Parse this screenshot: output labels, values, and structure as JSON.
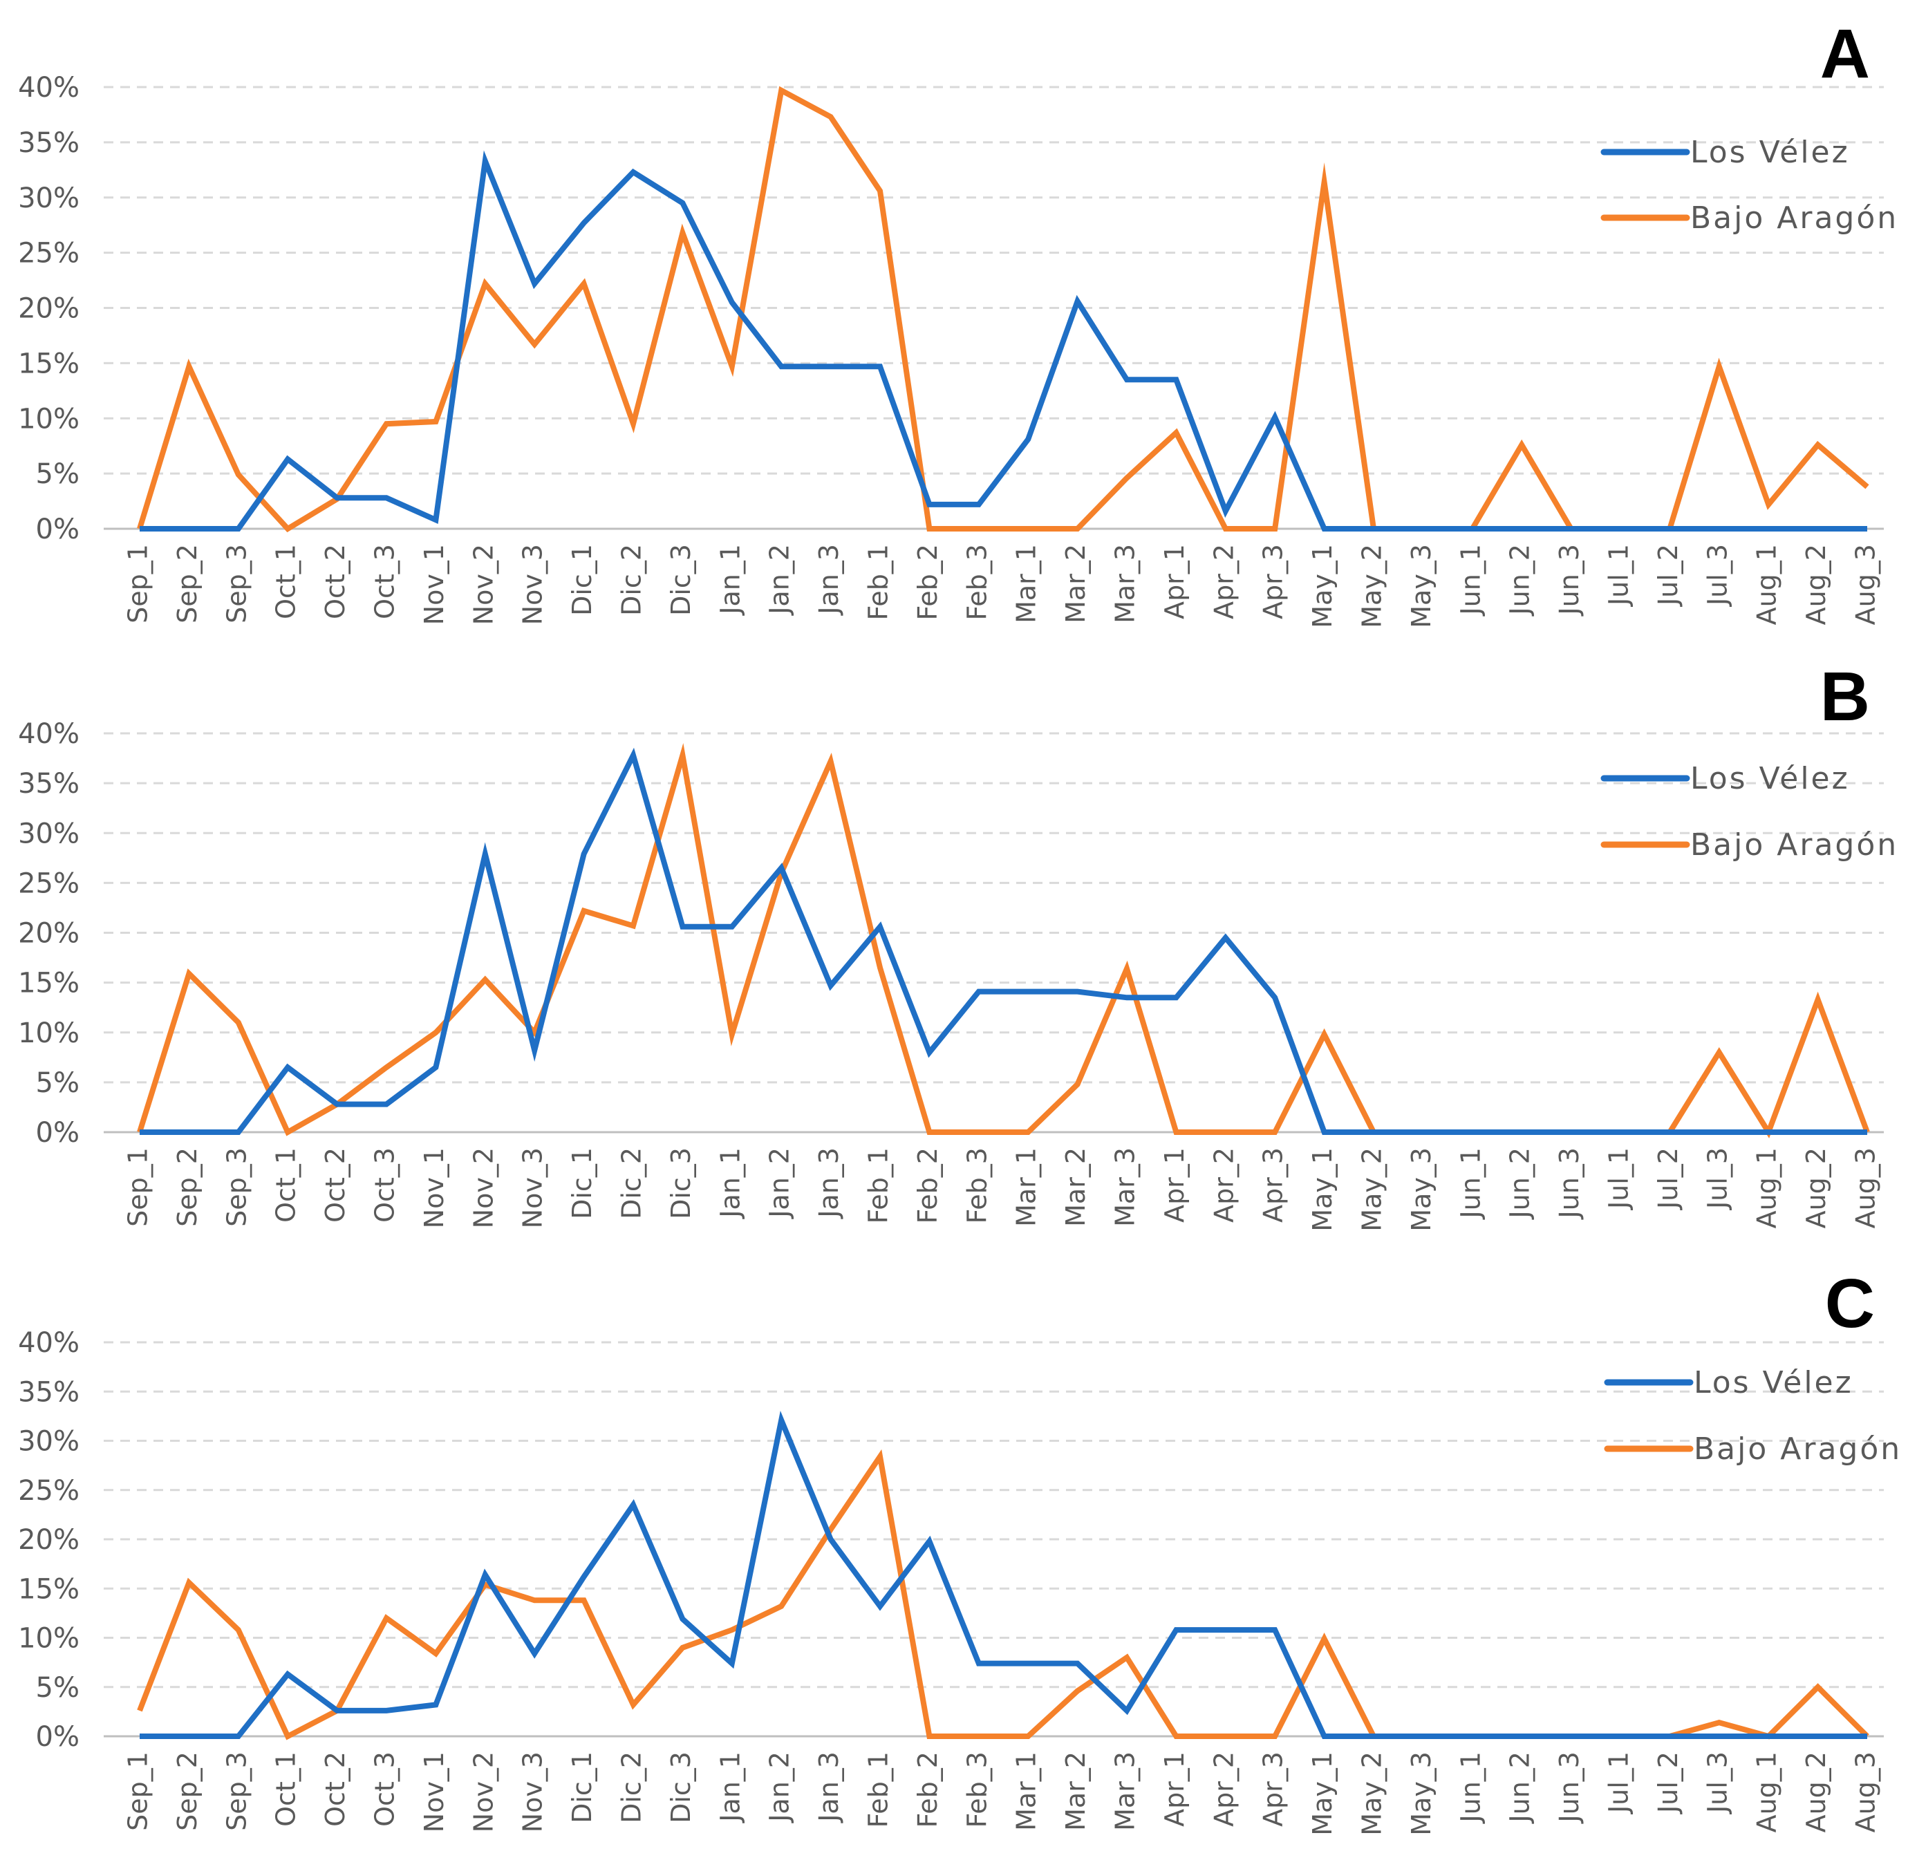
{
  "colors": {
    "los_velez": "#1F6FC5",
    "bajo_aragon": "#F5812A",
    "grid": "#D9D9D9",
    "axis": "#BFBFBF",
    "tick": "#595959"
  },
  "chart_data": [
    {
      "type": "line",
      "panel": "A",
      "categories": [
        "Sep_1",
        "Sep_2",
        "Sep_3",
        "Oct_1",
        "Oct_2",
        "Oct_3",
        "Nov_1",
        "Nov_2",
        "Nov_3",
        "Dic_1",
        "Dic_2",
        "Dic_3",
        "Jan_1",
        "Jan_2",
        "Jan_3",
        "Feb_1",
        "Feb_2",
        "Feb_3",
        "Mar_1",
        "Mar_2",
        "Mar_3",
        "Apr_1",
        "Apr_2",
        "Apr_3",
        "May_1",
        "May_2",
        "May_3",
        "Jun_1",
        "Jun_2",
        "Jun_3",
        "Jul_1",
        "Jul_2",
        "Jul_3",
        "Aug_1",
        "Aug_2",
        "Aug_3"
      ],
      "yticks": [
        "0%",
        "5%",
        "10%",
        "15%",
        "20%",
        "25%",
        "30%",
        "35%",
        "40%"
      ],
      "ylim": [
        0,
        40
      ],
      "grid": true,
      "legend_position": "top-right",
      "series": [
        {
          "name": "Los Vélez",
          "values": [
            0,
            0,
            0,
            6.3,
            2.8,
            2.8,
            0.8,
            33.3,
            22.2,
            27.7,
            32.3,
            29.5,
            20.5,
            14.7,
            14.7,
            14.7,
            2.2,
            2.2,
            8.1,
            20.6,
            13.5,
            13.5,
            1.6,
            10.1,
            0,
            0,
            0,
            0,
            0,
            0,
            0,
            0,
            0,
            0,
            0,
            0
          ]
        },
        {
          "name": "Bajo Aragón",
          "values": [
            0,
            14.7,
            4.9,
            0,
            2.7,
            9.5,
            9.7,
            22.2,
            16.7,
            22.2,
            9.5,
            26.8,
            14.7,
            39.7,
            37.3,
            30.6,
            0,
            0,
            0,
            0,
            4.6,
            8.7,
            0,
            0,
            31.4,
            0,
            0,
            0,
            7.6,
            0,
            0,
            0,
            14.7,
            2.2,
            7.6,
            3.8
          ]
        }
      ]
    },
    {
      "type": "line",
      "panel": "B",
      "categories": [
        "Sep_1",
        "Sep_2",
        "Sep_3",
        "Oct_1",
        "Oct_2",
        "Oct_3",
        "Nov_1",
        "Nov_2",
        "Nov_3",
        "Dic_1",
        "Dic_2",
        "Dic_3",
        "Jan_1",
        "Jan_2",
        "Jan_3",
        "Feb_1",
        "Feb_2",
        "Feb_3",
        "Mar_1",
        "Mar_2",
        "Mar_3",
        "Apr_1",
        "Apr_2",
        "Apr_3",
        "May_1",
        "May_2",
        "May_3",
        "Jun_1",
        "Jun_2",
        "Jun_3",
        "Jul_1",
        "Jul_2",
        "Jul_3",
        "Aug_1",
        "Aug_2",
        "Aug_3"
      ],
      "yticks": [
        "0%",
        "5%",
        "10%",
        "15%",
        "20%",
        "25%",
        "30%",
        "35%",
        "40%"
      ],
      "ylim": [
        0,
        40
      ],
      "grid": true,
      "legend_position": "top-right",
      "series": [
        {
          "name": "Los Vélez",
          "values": [
            0,
            0,
            0,
            6.5,
            2.8,
            2.8,
            6.5,
            27.9,
            8.2,
            27.9,
            37.8,
            20.6,
            20.6,
            26.5,
            14.7,
            20.6,
            8.0,
            14.1,
            14.1,
            14.1,
            13.5,
            13.5,
            19.5,
            13.5,
            0,
            0,
            0,
            0,
            0,
            0,
            0,
            0,
            0,
            0,
            0,
            0
          ]
        },
        {
          "name": "Bajo Aragón",
          "values": [
            0,
            15.9,
            11.0,
            0,
            2.8,
            6.5,
            10.0,
            15.3,
            10.0,
            22.2,
            20.7,
            37.8,
            9.8,
            26.0,
            37.2,
            16.5,
            0,
            0,
            0,
            4.8,
            16.4,
            0,
            0,
            0,
            9.8,
            0,
            0,
            0,
            0,
            0,
            0,
            0,
            8.0,
            0,
            13.3,
            0
          ]
        }
      ]
    },
    {
      "type": "line",
      "panel": "C",
      "categories": [
        "Sep_1",
        "Sep_2",
        "Sep_3",
        "Oct_1",
        "Oct_2",
        "Oct_3",
        "Nov_1",
        "Nov_2",
        "Nov_3",
        "Dic_1",
        "Dic_2",
        "Dic_3",
        "Jan_1",
        "Jan_2",
        "Jan_3",
        "Feb_1",
        "Feb_2",
        "Feb_3",
        "Mar_1",
        "Mar_2",
        "Mar_3",
        "Apr_1",
        "Apr_2",
        "Apr_3",
        "May_1",
        "May_2",
        "May_3",
        "Jun_1",
        "Jun_2",
        "Jun_3",
        "Jul_1",
        "Jul_2",
        "Jul_3",
        "Aug_1",
        "Aug_2",
        "Aug_3"
      ],
      "yticks": [
        "0%",
        "5%",
        "10%",
        "15%",
        "20%",
        "25%",
        "30%",
        "35%",
        "40%"
      ],
      "ylim": [
        0,
        40
      ],
      "grid": true,
      "legend_position": "top-right",
      "series": [
        {
          "name": "Los Vélez",
          "values": [
            0,
            0,
            0,
            6.3,
            2.6,
            2.6,
            3.2,
            16.4,
            8.4,
            16.2,
            23.5,
            11.9,
            7.4,
            32.1,
            20.0,
            13.2,
            19.8,
            7.4,
            7.4,
            7.4,
            2.6,
            10.8,
            10.8,
            10.8,
            0,
            0,
            0,
            0,
            0,
            0,
            0,
            0,
            0,
            0,
            0,
            0
          ]
        },
        {
          "name": "Bajo Aragón",
          "values": [
            2.6,
            15.6,
            10.8,
            0,
            2.6,
            12.0,
            8.4,
            15.4,
            13.8,
            13.8,
            3.2,
            9.0,
            10.8,
            13.2,
            21.0,
            28.4,
            0,
            0,
            0,
            4.6,
            8.0,
            0,
            0,
            0,
            9.9,
            0,
            0,
            0,
            0,
            0,
            0,
            0,
            1.4,
            0,
            5.0,
            0
          ]
        }
      ]
    }
  ]
}
